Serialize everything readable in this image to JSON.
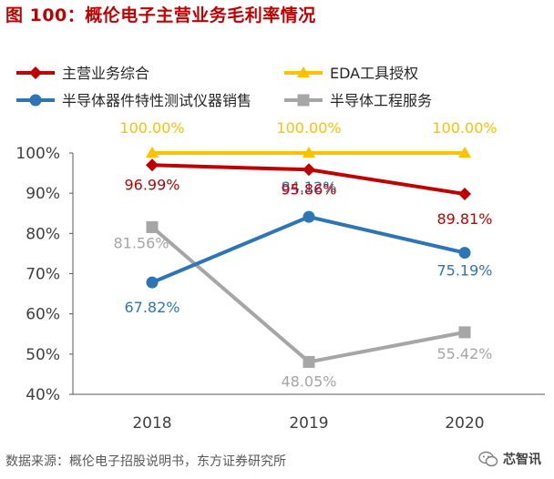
{
  "page": {
    "title": "图 100：概伦电子主营业务毛利率情况"
  },
  "chart_data": {
    "type": "line",
    "title": "图 100：概伦电子主营业务毛利率情况",
    "categories": [
      "2018",
      "2019",
      "2020"
    ],
    "ylim": [
      40,
      100
    ],
    "yticks": [
      "40%",
      "50%",
      "60%",
      "70%",
      "80%",
      "90%",
      "100%"
    ],
    "grid": false,
    "legend_position": "top",
    "xlabel": "",
    "ylabel": "",
    "series": [
      {
        "name": "主营业务综合",
        "values": [
          96.99,
          95.86,
          89.81
        ],
        "labels": [
          "96.99%",
          "95.86%",
          "89.81%"
        ],
        "color": "#c00000",
        "marker": "diamond",
        "label_position": "below"
      },
      {
        "name": "EDA工具授权",
        "values": [
          100.0,
          100.0,
          100.0
        ],
        "labels": [
          "100.00%",
          "100.00%",
          "100.00%"
        ],
        "color": "#ffc000",
        "marker": "triangle",
        "label_position": "above"
      },
      {
        "name": "半导体器件特性测试仪器销售",
        "values": [
          67.82,
          84.12,
          75.19
        ],
        "labels": [
          "67.82%",
          "84.12%",
          "75.19%"
        ],
        "color": "#2e75b6",
        "marker": "circle",
        "label_position": "below"
      },
      {
        "name": "半导体工程服务",
        "values": [
          81.56,
          48.05,
          55.42
        ],
        "labels": [
          "81.56%",
          "48.05%",
          "55.42%"
        ],
        "color": "#a6a6a6",
        "marker": "square",
        "label_position": "mixed"
      }
    ]
  },
  "footer": {
    "source": "数据来源：概伦电子招股说明书，东方证券研究所",
    "brand": "芯智讯",
    "brand_icon": "wechat-icon"
  }
}
